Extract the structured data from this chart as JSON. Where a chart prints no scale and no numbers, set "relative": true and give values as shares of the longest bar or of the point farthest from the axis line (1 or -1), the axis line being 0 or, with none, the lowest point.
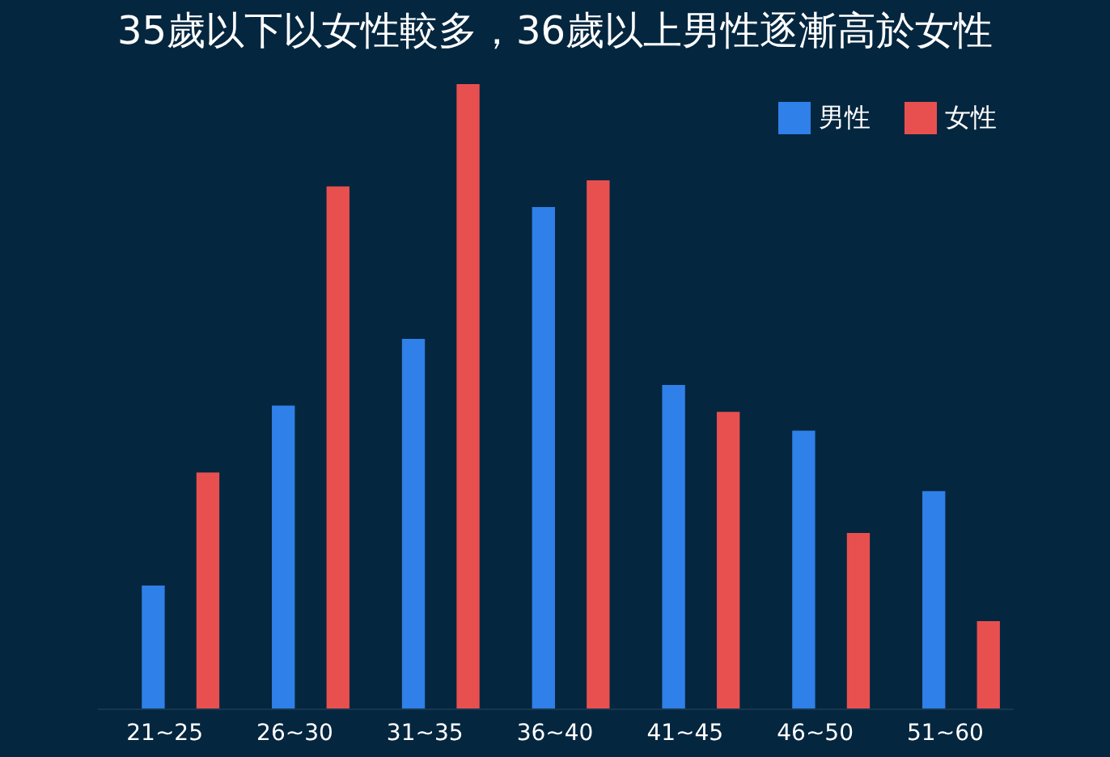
{
  "chart_data": {
    "type": "bar",
    "title": "35歲以下以女性較多，36歲以上男性逐漸高於女性",
    "relative": true,
    "legend": "top right",
    "categories": [
      "21~25",
      "26~30",
      "31~35",
      "36~40",
      "41~45",
      "46~50",
      "51~60"
    ],
    "series": [
      {
        "name": "男性",
        "color": "#2f80e8",
        "values": [
          0.197,
          0.485,
          0.592,
          0.803,
          0.518,
          0.445,
          0.348
        ]
      },
      {
        "name": "女性",
        "color": "#e8504f",
        "values": [
          0.378,
          0.836,
          1,
          0.846,
          0.475,
          0.281,
          0.14
        ]
      }
    ]
  }
}
